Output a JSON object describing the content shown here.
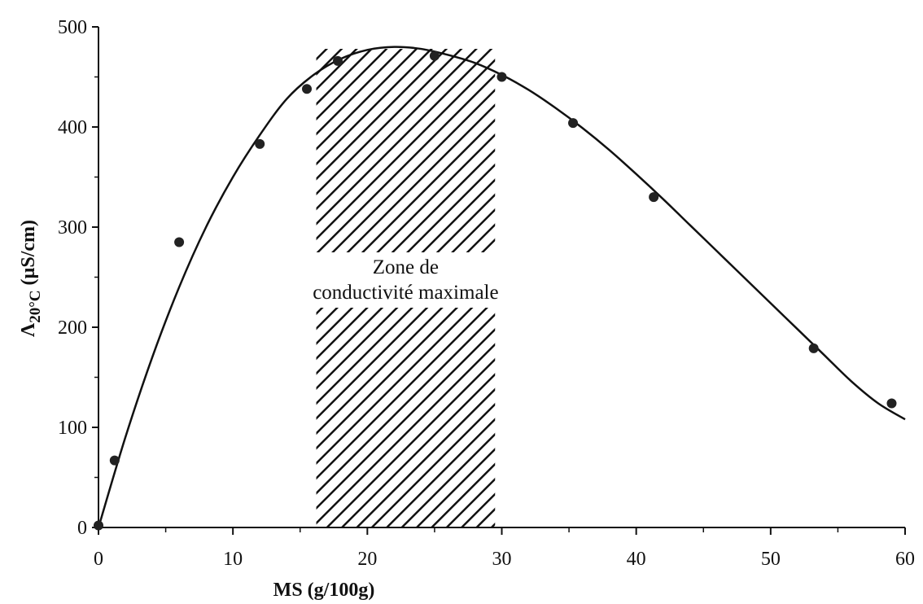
{
  "chart_data": {
    "type": "scatter",
    "xlabel": "MS (g/100g)",
    "ylabel": {
      "symbol": "Λ",
      "subscript": "20°C",
      "unit": " (µS/cm)"
    },
    "xlim": [
      0,
      60
    ],
    "ylim": [
      0,
      500
    ],
    "x_ticks": [
      0,
      10,
      20,
      30,
      40,
      50,
      60
    ],
    "y_ticks": [
      0,
      100,
      200,
      300,
      400,
      500
    ],
    "grid": false,
    "series": [
      {
        "type": "scatter",
        "x": [
          0,
          1.2,
          6,
          12,
          15.5,
          17.8,
          25,
          30,
          35.3,
          41.3,
          53.2,
          59
        ],
        "y": [
          2,
          67,
          285,
          383,
          438,
          466,
          471,
          450,
          404,
          330,
          179,
          124
        ]
      },
      {
        "type": "line",
        "x": [
          0,
          2,
          4,
          6,
          8,
          10,
          12,
          14,
          16,
          18,
          20,
          22,
          24,
          26,
          28,
          30,
          32,
          34,
          36,
          38,
          40,
          42,
          44,
          46,
          48,
          50,
          52,
          54,
          56,
          58,
          60
        ],
        "y": [
          0,
          90,
          170,
          240,
          300,
          350,
          392,
          428,
          452,
          468,
          477,
          480,
          478,
          472,
          464,
          452,
          437,
          419,
          399,
          377,
          353,
          328,
          302,
          276,
          250,
          224,
          198,
          172,
          146,
          124,
          108
        ]
      }
    ],
    "shaded_region": {
      "x_range": [
        16.2,
        29.5
      ],
      "label_lines": [
        "Zone de",
        "conductivité maximale"
      ]
    }
  }
}
